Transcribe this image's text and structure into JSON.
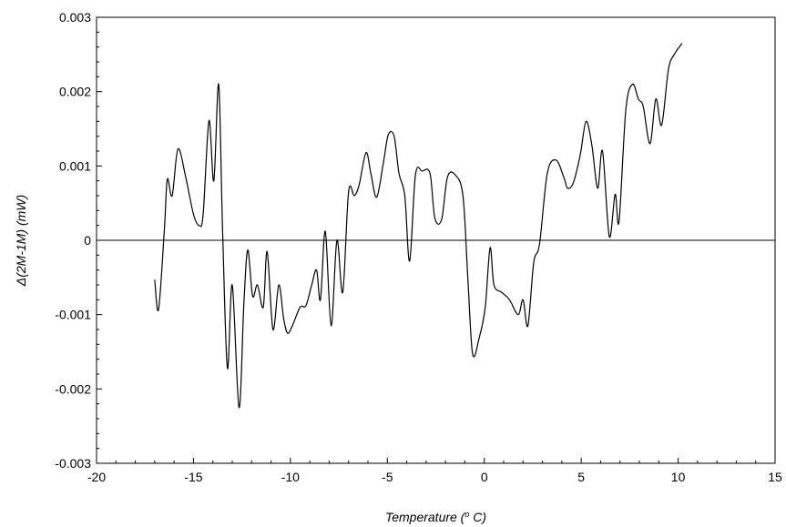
{
  "chart_data": {
    "type": "line",
    "title": "",
    "xlabel": "Temperature (",
    "xlabel_unit": "o",
    "xlabel_tail": " C)",
    "ylabel": "Δ(2M-1M) (mW)",
    "xlim": [
      -20,
      15
    ],
    "ylim": [
      -0.003,
      0.003
    ],
    "x_ticks": [
      -20,
      -15,
      -10,
      -5,
      0,
      5,
      10,
      15
    ],
    "x_tick_labels": [
      "-20",
      "-15",
      "-10",
      "-5",
      "0",
      "5",
      "10",
      "15"
    ],
    "y_ticks": [
      -0.003,
      -0.002,
      -0.001,
      0,
      0.001,
      0.002,
      0.003
    ],
    "y_tick_labels": [
      "-0.003",
      "-0.002",
      "-0.001",
      "0",
      "0.001",
      "0.002",
      "0.003"
    ],
    "zero_line": true,
    "grid": false,
    "colors": {
      "line": "#000000",
      "axis": "#000000",
      "background": "#ffffff"
    },
    "series": [
      {
        "points": [
          [
            -17.0,
            -0.00053
          ],
          [
            -16.8,
            -0.00093
          ],
          [
            -16.5,
            0.00015
          ],
          [
            -16.35,
            0.00082
          ],
          [
            -16.1,
            0.0006
          ],
          [
            -15.8,
            0.00123
          ],
          [
            -15.4,
            0.00085
          ],
          [
            -15.0,
            0.00035
          ],
          [
            -14.7,
            0.0002
          ],
          [
            -14.5,
            0.00035
          ],
          [
            -14.2,
            0.00161
          ],
          [
            -13.95,
            0.0008
          ],
          [
            -13.7,
            0.0021
          ],
          [
            -13.5,
            0.00015
          ],
          [
            -13.25,
            -0.00172
          ],
          [
            -13.0,
            -0.0006
          ],
          [
            -12.65,
            -0.00225
          ],
          [
            -12.4,
            -0.00085
          ],
          [
            -12.2,
            -0.00013
          ],
          [
            -11.95,
            -0.00075
          ],
          [
            -11.7,
            -0.0006
          ],
          [
            -11.4,
            -0.0009
          ],
          [
            -11.2,
            -0.00015
          ],
          [
            -10.9,
            -0.0012
          ],
          [
            -10.6,
            -0.0006
          ],
          [
            -10.35,
            -0.00105
          ],
          [
            -10.15,
            -0.00125
          ],
          [
            -9.9,
            -0.00115
          ],
          [
            -9.5,
            -0.0009
          ],
          [
            -9.2,
            -0.00088
          ],
          [
            -8.9,
            -0.0006
          ],
          [
            -8.65,
            -0.0004
          ],
          [
            -8.45,
            -0.0008
          ],
          [
            -8.2,
            0.00012
          ],
          [
            -7.9,
            -0.00115
          ],
          [
            -7.6,
            0.0
          ],
          [
            -7.3,
            -0.0007
          ],
          [
            -7.0,
            0.00065
          ],
          [
            -6.7,
            0.0006
          ],
          [
            -6.45,
            0.00075
          ],
          [
            -6.1,
            0.00118
          ],
          [
            -5.85,
            0.0009
          ],
          [
            -5.55,
            0.00058
          ],
          [
            -5.2,
            0.00105
          ],
          [
            -4.95,
            0.00142
          ],
          [
            -4.65,
            0.0014
          ],
          [
            -4.4,
            0.0009
          ],
          [
            -4.1,
            0.0006
          ],
          [
            -3.85,
            -0.00028
          ],
          [
            -3.55,
            0.00088
          ],
          [
            -3.2,
            0.00093
          ],
          [
            -2.8,
            0.0009
          ],
          [
            -2.55,
            0.0003
          ],
          [
            -2.2,
            0.00028
          ],
          [
            -1.9,
            0.00085
          ],
          [
            -1.5,
            0.00088
          ],
          [
            -1.1,
            0.0006
          ],
          [
            -0.85,
            -0.0005
          ],
          [
            -0.6,
            -0.00153
          ],
          [
            -0.25,
            -0.0013
          ],
          [
            0.05,
            -0.0009
          ],
          [
            0.3,
            -0.0001
          ],
          [
            0.5,
            -0.0006
          ],
          [
            0.9,
            -0.0007
          ],
          [
            1.3,
            -0.0008
          ],
          [
            1.75,
            -0.001
          ],
          [
            2.0,
            -0.0008
          ],
          [
            2.25,
            -0.00115
          ],
          [
            2.55,
            -0.0003
          ],
          [
            2.85,
            -5e-05
          ],
          [
            3.25,
            0.0009
          ],
          [
            3.7,
            0.00108
          ],
          [
            4.1,
            0.00085
          ],
          [
            4.3,
            0.0007
          ],
          [
            4.6,
            0.00078
          ],
          [
            4.95,
            0.00115
          ],
          [
            5.25,
            0.0016
          ],
          [
            5.55,
            0.00128
          ],
          [
            5.85,
            0.0007
          ],
          [
            6.1,
            0.0012
          ],
          [
            6.45,
            5e-05
          ],
          [
            6.75,
            0.00062
          ],
          [
            6.95,
            0.00025
          ],
          [
            7.3,
            0.00175
          ],
          [
            7.65,
            0.0021
          ],
          [
            7.95,
            0.0019
          ],
          [
            8.2,
            0.0018
          ],
          [
            8.55,
            0.0013
          ],
          [
            8.85,
            0.0019
          ],
          [
            9.15,
            0.00155
          ],
          [
            9.5,
            0.0023
          ],
          [
            9.8,
            0.0025
          ],
          [
            10.2,
            0.00265
          ]
        ]
      }
    ]
  }
}
